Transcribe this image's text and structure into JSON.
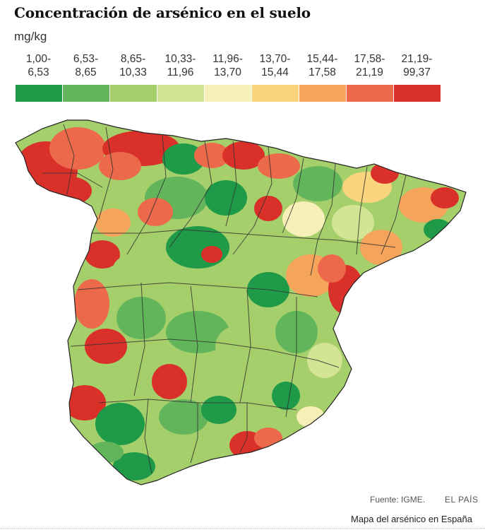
{
  "title": "Concentración de arsénico en el suelo",
  "unit": "mg/kg",
  "legend": [
    {
      "line1": "1,00-",
      "line2": "6,53",
      "color": "#1f9a48"
    },
    {
      "line1": "6,53-",
      "line2": "8,65",
      "color": "#63b55c"
    },
    {
      "line1": "8,65-",
      "line2": "10,33",
      "color": "#a4cf6a"
    },
    {
      "line1": "10,33-",
      "line2": "11,96",
      "color": "#d3e495"
    },
    {
      "line1": "11,96-",
      "line2": "13,70",
      "color": "#f6f0b8"
    },
    {
      "line1": "13,70-",
      "line2": "15,44",
      "color": "#fbd47e"
    },
    {
      "line1": "15,44-",
      "line2": "17,58",
      "color": "#f4a45b"
    },
    {
      "line1": "17,58-",
      "line2": "21,19",
      "color": "#ec6a4b"
    },
    {
      "line1": "21,19-",
      "line2": "99,37",
      "color": "#d9302a"
    }
  ],
  "source": "Fuente: IGME.",
  "brand": "EL PAÍS",
  "caption": "Mapa del arsénico en España"
}
